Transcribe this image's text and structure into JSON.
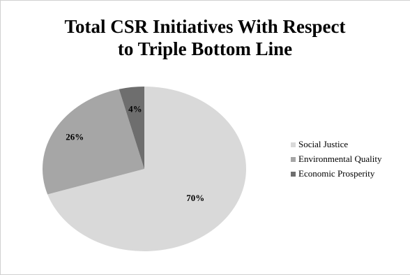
{
  "chart_data": {
    "type": "pie",
    "title": "Total CSR Initiatives With Respect to Triple Bottom Line",
    "title_lines": [
      "Total CSR Initiatives With Respect",
      "to Triple Bottom Line"
    ],
    "categories": [
      "Social Justice",
      "Environmental Quality",
      "Economic Prosperity"
    ],
    "values": [
      70,
      26,
      4
    ],
    "data_labels": [
      "70%",
      "26%",
      "4%"
    ],
    "colors": [
      "#d9d9d9",
      "#a6a6a6",
      "#6e6e6e"
    ],
    "legend_position": "right",
    "start_angle": "12 o'clock",
    "direction": "clockwise"
  }
}
